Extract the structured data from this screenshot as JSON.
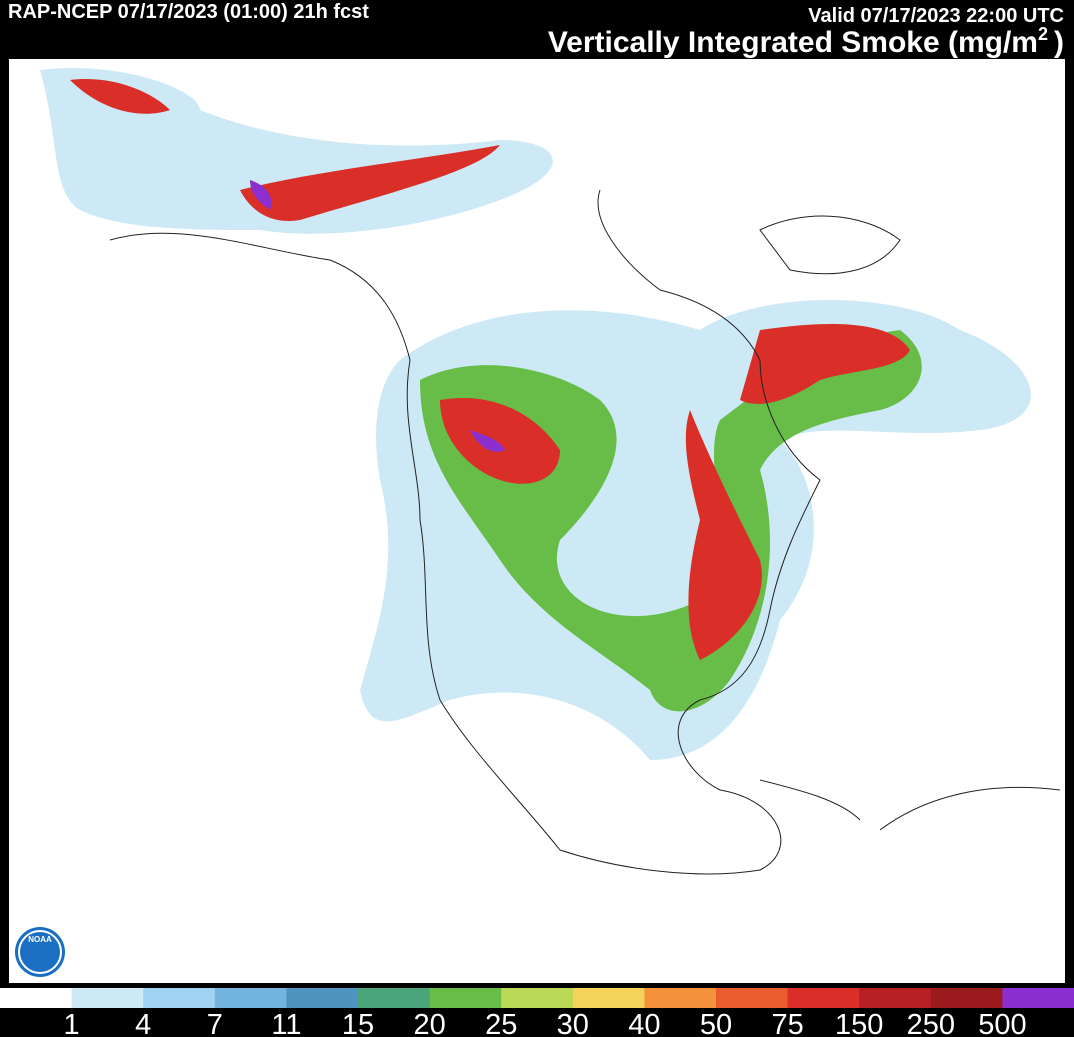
{
  "header": {
    "left": "RAP-NCEP 07/17/2023 (01:00) 21h fcst",
    "valid": "Valid 07/17/2023 22:00 UTC",
    "title": "Vertically Integrated Smoke (mg/m",
    "title_superscript": "2",
    "title_end": ")"
  },
  "logo": {
    "text": "NOAA"
  },
  "colorbar": {
    "colors": [
      "#ffffff",
      "#cde9f6",
      "#9fd3f1",
      "#74b4e0",
      "#4f93c1",
      "#4aa57a",
      "#67bd48",
      "#b9d957",
      "#f5d35a",
      "#f3923b",
      "#ea5c2e",
      "#d92f28",
      "#b71f25",
      "#9b1a1e",
      "#8b2fd0"
    ],
    "labels": [
      1,
      4,
      7,
      11,
      15,
      20,
      25,
      30,
      40,
      50,
      75,
      150,
      250,
      500
    ]
  }
}
